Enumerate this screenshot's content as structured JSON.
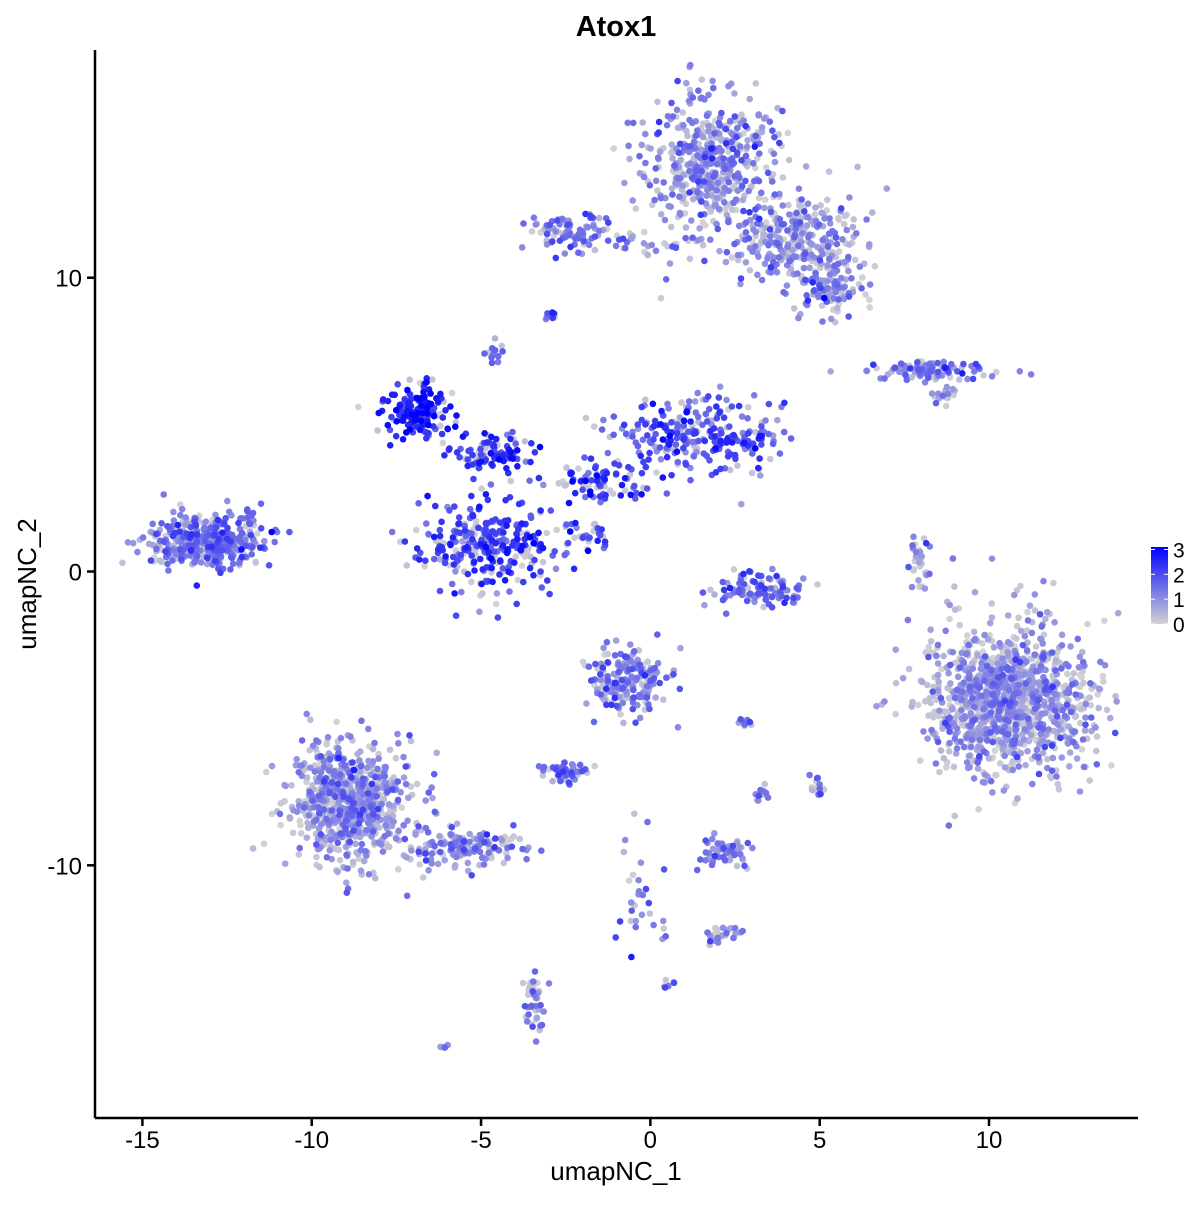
{
  "chart_data": {
    "type": "scatter",
    "title": "Atox1",
    "xlabel": "umapNC_1",
    "ylabel": "umapNC_2",
    "xlim": [
      -16.4,
      14.4
    ],
    "ylim": [
      -18.6,
      17.75
    ],
    "xticks": [
      -15,
      -10,
      -5,
      0,
      5,
      10
    ],
    "yticks": [
      -10,
      0,
      10
    ],
    "xtick_labels": [
      "-15",
      "-10",
      "-5",
      "0",
      "5",
      "10"
    ],
    "ytick_labels": [
      "-10",
      "0",
      "10"
    ],
    "grid": false,
    "color_scale": {
      "low": "#D3D3D3",
      "high": "#0000FF",
      "range": [
        0,
        3.1
      ],
      "ticks": [
        0,
        1,
        2,
        3
      ],
      "tick_labels": [
        "0",
        "1",
        "2",
        "3"
      ],
      "position": "right"
    },
    "clusters_note_free": true,
    "clusters": [
      {
        "x": 1.8,
        "y": 14.0,
        "sx": 1.2,
        "sy": 1.4,
        "n": 500,
        "expr": 1.0
      },
      {
        "x": 4.4,
        "y": 11.3,
        "sx": 1.3,
        "sy": 0.9,
        "n": 280,
        "expr": 1.1
      },
      {
        "x": 5.2,
        "y": 9.6,
        "sx": 0.7,
        "sy": 0.6,
        "n": 110,
        "expr": 1.0
      },
      {
        "x": -2.4,
        "y": 11.6,
        "sx": 0.8,
        "sy": 0.4,
        "n": 80,
        "expr": 1.2
      },
      {
        "x": 0.0,
        "y": 11.2,
        "sx": 1.4,
        "sy": 0.3,
        "n": 40,
        "expr": 0.9
      },
      {
        "x": -13.1,
        "y": 1.06,
        "sx": 1.1,
        "sy": 0.6,
        "n": 420,
        "expr": 1.3
      },
      {
        "x": -6.9,
        "y": 5.5,
        "sx": 0.7,
        "sy": 0.6,
        "n": 150,
        "expr": 2.5
      },
      {
        "x": -4.7,
        "y": 4.0,
        "sx": 0.8,
        "sy": 0.4,
        "n": 100,
        "expr": 2.3
      },
      {
        "x": -4.7,
        "y": 0.9,
        "sx": 1.2,
        "sy": 0.9,
        "n": 300,
        "expr": 2.0
      },
      {
        "x": 1.5,
        "y": 4.6,
        "sx": 1.6,
        "sy": 0.8,
        "n": 260,
        "expr": 1.8
      },
      {
        "x": -1.5,
        "y": 3.1,
        "sx": 0.9,
        "sy": 0.4,
        "n": 80,
        "expr": 2.0
      },
      {
        "x": -1.8,
        "y": 1.2,
        "sx": 0.5,
        "sy": 0.4,
        "n": 30,
        "expr": 2.0
      },
      {
        "x": 3.2,
        "y": -0.6,
        "sx": 0.9,
        "sy": 0.4,
        "n": 100,
        "expr": 1.5
      },
      {
        "x": 8.3,
        "y": 6.85,
        "sx": 1.2,
        "sy": 0.2,
        "n": 100,
        "expr": 1.3
      },
      {
        "x": 8.0,
        "y": 0.4,
        "sx": 0.2,
        "sy": 0.7,
        "n": 30,
        "expr": 1.0
      },
      {
        "x": 10.6,
        "y": -4.4,
        "sx": 1.5,
        "sy": 1.6,
        "n": 1200,
        "expr": 0.8
      },
      {
        "x": -0.7,
        "y": -3.7,
        "sx": 0.7,
        "sy": 0.7,
        "n": 200,
        "expr": 1.2
      },
      {
        "x": -8.85,
        "y": -7.8,
        "sx": 1.1,
        "sy": 1.3,
        "n": 700,
        "expr": 0.9
      },
      {
        "x": -5.6,
        "y": -9.4,
        "sx": 1.2,
        "sy": 0.4,
        "n": 150,
        "expr": 1.1
      },
      {
        "x": -2.5,
        "y": -6.85,
        "sx": 0.4,
        "sy": 0.2,
        "n": 50,
        "expr": 1.3
      },
      {
        "x": 2.2,
        "y": -9.5,
        "sx": 0.5,
        "sy": 0.3,
        "n": 60,
        "expr": 1.2
      },
      {
        "x": -3.4,
        "y": -14.6,
        "sx": 0.2,
        "sy": 0.6,
        "n": 40,
        "expr": 1.2
      },
      {
        "x": -0.3,
        "y": -10.9,
        "sx": 0.5,
        "sy": 1.2,
        "n": 30,
        "expr": 1.0
      },
      {
        "x": 2.1,
        "y": -12.4,
        "sx": 0.4,
        "sy": 0.2,
        "n": 25,
        "expr": 1.1
      },
      {
        "x": -4.6,
        "y": 7.5,
        "sx": 0.15,
        "sy": 0.2,
        "n": 15,
        "expr": 1.0
      },
      {
        "x": -2.95,
        "y": 8.7,
        "sx": 0.15,
        "sy": 0.1,
        "n": 10,
        "expr": 1.3
      },
      {
        "x": 2.8,
        "y": -5.1,
        "sx": 0.2,
        "sy": 0.1,
        "n": 10,
        "expr": 1.5
      },
      {
        "x": 4.9,
        "y": -7.3,
        "sx": 0.15,
        "sy": 0.3,
        "n": 15,
        "expr": 1.5
      },
      {
        "x": 3.3,
        "y": -7.5,
        "sx": 0.1,
        "sy": 0.2,
        "n": 10,
        "expr": 1.2
      },
      {
        "x": -6.05,
        "y": -16.15,
        "sx": 0.1,
        "sy": 0.05,
        "n": 6,
        "expr": 1.2
      },
      {
        "x": 0.53,
        "y": -14.0,
        "sx": 0.1,
        "sy": 0.1,
        "n": 6,
        "expr": 1.2
      },
      {
        "x": 8.7,
        "y": 6.0,
        "sx": 0.3,
        "sy": 0.2,
        "n": 15,
        "expr": 1.1
      }
    ]
  }
}
